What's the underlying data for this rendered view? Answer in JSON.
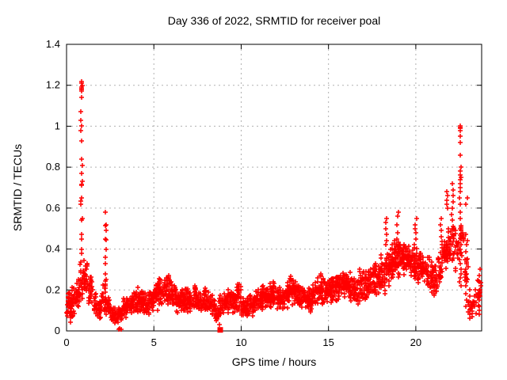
{
  "window": {
    "background": "#ffffff"
  },
  "chart_data": {
    "type": "scatter",
    "title": "Day 336 of 2022, SRMTID for receiver poal",
    "xlabel": "GPS time / hours",
    "ylabel": "SRMTID / TECUs",
    "xlim": [
      0,
      23.77
    ],
    "ylim": [
      0,
      1.4
    ],
    "xtick_values": [
      0,
      5,
      10,
      15,
      20
    ],
    "xtick_labels": [
      "0",
      "5",
      "10",
      "15",
      "20"
    ],
    "ytick_values": [
      0,
      0.2,
      0.4,
      0.6,
      0.8,
      1.0,
      1.2,
      1.4
    ],
    "ytick_labels": [
      "0",
      "0.2",
      "0.4",
      "0.6",
      "0.8",
      "1",
      "1.2",
      "1.4"
    ],
    "grid": true,
    "legend": null,
    "marker": "plus",
    "colors": {
      "points": "#ff0000",
      "grid": "#b0b0b0",
      "axis": "#000000",
      "text": "#000000"
    },
    "seed": 20221336,
    "band_bin_width": 0.25,
    "band_bins": [
      [
        0.125,
        0.03,
        0.22,
        26
      ],
      [
        0.375,
        0.05,
        0.22,
        24
      ],
      [
        0.625,
        0.08,
        0.26,
        24
      ],
      [
        0.875,
        0.14,
        0.34,
        22
      ],
      [
        1.125,
        0.18,
        0.36,
        22
      ],
      [
        1.375,
        0.1,
        0.28,
        22
      ],
      [
        1.625,
        0.06,
        0.2,
        22
      ],
      [
        1.875,
        0.05,
        0.16,
        22
      ],
      [
        2.125,
        0.08,
        0.25,
        20
      ],
      [
        2.375,
        0.06,
        0.18,
        20
      ],
      [
        2.625,
        0.03,
        0.13,
        20
      ],
      [
        2.875,
        0.03,
        0.12,
        20
      ],
      [
        3.125,
        0.03,
        0.13,
        18
      ],
      [
        3.375,
        0.05,
        0.16,
        20
      ],
      [
        3.625,
        0.07,
        0.18,
        22
      ],
      [
        3.875,
        0.08,
        0.2,
        22
      ],
      [
        4.125,
        0.08,
        0.22,
        24
      ],
      [
        4.375,
        0.08,
        0.2,
        24
      ],
      [
        4.625,
        0.07,
        0.19,
        22
      ],
      [
        4.875,
        0.08,
        0.2,
        22
      ],
      [
        5.125,
        0.1,
        0.26,
        24
      ],
      [
        5.375,
        0.1,
        0.28,
        24
      ],
      [
        5.625,
        0.12,
        0.27,
        24
      ],
      [
        5.875,
        0.12,
        0.28,
        24
      ],
      [
        6.125,
        0.1,
        0.24,
        24
      ],
      [
        6.375,
        0.08,
        0.2,
        24
      ],
      [
        6.625,
        0.08,
        0.2,
        24
      ],
      [
        6.875,
        0.09,
        0.23,
        24
      ],
      [
        7.125,
        0.09,
        0.22,
        24
      ],
      [
        7.375,
        0.1,
        0.22,
        24
      ],
      [
        7.625,
        0.08,
        0.2,
        24
      ],
      [
        7.875,
        0.08,
        0.21,
        24
      ],
      [
        8.125,
        0.07,
        0.2,
        22
      ],
      [
        8.375,
        0.06,
        0.18,
        22
      ],
      [
        8.625,
        0.03,
        0.12,
        18
      ],
      [
        8.875,
        0.06,
        0.18,
        20
      ],
      [
        9.125,
        0.08,
        0.2,
        24
      ],
      [
        9.375,
        0.09,
        0.22,
        24
      ],
      [
        9.625,
        0.08,
        0.2,
        24
      ],
      [
        9.875,
        0.08,
        0.24,
        24
      ],
      [
        10.125,
        0.05,
        0.16,
        22
      ],
      [
        10.375,
        0.06,
        0.17,
        22
      ],
      [
        10.625,
        0.07,
        0.18,
        24
      ],
      [
        10.875,
        0.08,
        0.2,
        24
      ],
      [
        11.125,
        0.09,
        0.22,
        24
      ],
      [
        11.375,
        0.1,
        0.24,
        24
      ],
      [
        11.625,
        0.1,
        0.26,
        24
      ],
      [
        11.875,
        0.1,
        0.24,
        24
      ],
      [
        12.125,
        0.1,
        0.22,
        24
      ],
      [
        12.375,
        0.09,
        0.21,
        24
      ],
      [
        12.625,
        0.1,
        0.24,
        24
      ],
      [
        12.875,
        0.12,
        0.28,
        24
      ],
      [
        13.125,
        0.11,
        0.26,
        24
      ],
      [
        13.375,
        0.1,
        0.22,
        24
      ],
      [
        13.625,
        0.1,
        0.22,
        24
      ],
      [
        13.875,
        0.09,
        0.21,
        24
      ],
      [
        14.125,
        0.1,
        0.23,
        24
      ],
      [
        14.375,
        0.12,
        0.27,
        24
      ],
      [
        14.625,
        0.12,
        0.28,
        24
      ],
      [
        14.875,
        0.13,
        0.27,
        24
      ],
      [
        15.125,
        0.13,
        0.28,
        24
      ],
      [
        15.375,
        0.14,
        0.29,
        24
      ],
      [
        15.625,
        0.14,
        0.3,
        24
      ],
      [
        15.875,
        0.15,
        0.32,
        24
      ],
      [
        16.125,
        0.14,
        0.3,
        24
      ],
      [
        16.375,
        0.13,
        0.28,
        24
      ],
      [
        16.625,
        0.13,
        0.28,
        24
      ],
      [
        16.875,
        0.14,
        0.3,
        24
      ],
      [
        17.125,
        0.14,
        0.3,
        24
      ],
      [
        17.375,
        0.15,
        0.32,
        24
      ],
      [
        17.625,
        0.15,
        0.33,
        24
      ],
      [
        17.875,
        0.16,
        0.35,
        24
      ],
      [
        18.125,
        0.18,
        0.38,
        24
      ],
      [
        18.375,
        0.2,
        0.42,
        24
      ],
      [
        18.625,
        0.22,
        0.44,
        26
      ],
      [
        18.875,
        0.24,
        0.44,
        26
      ],
      [
        19.125,
        0.25,
        0.45,
        26
      ],
      [
        19.375,
        0.26,
        0.44,
        26
      ],
      [
        19.625,
        0.25,
        0.43,
        26
      ],
      [
        19.875,
        0.24,
        0.42,
        26
      ],
      [
        20.125,
        0.22,
        0.42,
        24
      ],
      [
        20.375,
        0.22,
        0.4,
        24
      ],
      [
        20.625,
        0.2,
        0.38,
        24
      ],
      [
        20.875,
        0.18,
        0.36,
        24
      ],
      [
        21.125,
        0.15,
        0.34,
        22
      ],
      [
        21.375,
        0.22,
        0.42,
        22
      ],
      [
        21.625,
        0.28,
        0.48,
        22
      ],
      [
        21.875,
        0.3,
        0.52,
        20
      ],
      [
        22.125,
        0.32,
        0.58,
        18
      ],
      [
        22.375,
        0.25,
        0.55,
        14
      ],
      [
        22.625,
        0.3,
        0.6,
        10
      ],
      [
        22.875,
        0.2,
        0.4,
        10
      ],
      [
        23.125,
        0.05,
        0.2,
        10
      ],
      [
        23.375,
        0.08,
        0.22,
        10
      ],
      [
        23.625,
        0.08,
        0.28,
        12
      ]
    ],
    "spike_columns": [
      {
        "x": 0.86,
        "ys": [
          1.22,
          1.21,
          1.2,
          1.19,
          1.185,
          1.18,
          1.17,
          1.14,
          1.07,
          1.03,
          1.0,
          0.98,
          0.93,
          0.84,
          0.81,
          0.77,
          0.73,
          0.715,
          0.71,
          0.65,
          0.635,
          0.62,
          0.55,
          0.54,
          0.47,
          0.45,
          0.4,
          0.38
        ]
      },
      {
        "x": 2.25,
        "ys": [
          0.58,
          0.52,
          0.515,
          0.49,
          0.45,
          0.445,
          0.4,
          0.36,
          0.33,
          0.28,
          0.25,
          0.22
        ]
      },
      {
        "x": 18.3,
        "ys": [
          0.55,
          0.53,
          0.5,
          0.47,
          0.44,
          0.42
        ]
      },
      {
        "x": 18.95,
        "ys": [
          0.58,
          0.56,
          0.52,
          0.48,
          0.45,
          0.42,
          0.4,
          0.38
        ]
      },
      {
        "x": 20.0,
        "ys": [
          0.55,
          0.52,
          0.5,
          0.48,
          0.45
        ]
      },
      {
        "x": 21.45,
        "ys": [
          0.55,
          0.52,
          0.49,
          0.46
        ]
      },
      {
        "x": 21.8,
        "ys": [
          0.68,
          0.66,
          0.64,
          0.62,
          0.6
        ]
      },
      {
        "x": 22.1,
        "ys": [
          0.72,
          0.69,
          0.66,
          0.63,
          0.6,
          0.57,
          0.54,
          0.5,
          0.46,
          0.42,
          0.38,
          0.35
        ]
      },
      {
        "x": 22.55,
        "ys": [
          1.0,
          0.995,
          0.99,
          0.98,
          0.95,
          0.92,
          0.86,
          0.8,
          0.78,
          0.76,
          0.75,
          0.74,
          0.72,
          0.7,
          0.68,
          0.65,
          0.62,
          0.58,
          0.55,
          0.5,
          0.45,
          0.42,
          0.4,
          0.38,
          0.35,
          0.33,
          0.3,
          0.28,
          0.26,
          0.24,
          0.22
        ]
      },
      {
        "x": 22.9,
        "ys": [
          0.65,
          0.62,
          0.47,
          0.44,
          0.42,
          0.35,
          0.33,
          0.3,
          0.28,
          0.25,
          0.22,
          0.18,
          0.15,
          0.12
        ]
      },
      {
        "x": 23.1,
        "ys": [
          0.2,
          0.17,
          0.14,
          0.11,
          0.08,
          0.06
        ]
      },
      {
        "x": 23.65,
        "ys": [
          0.3,
          0.27,
          0.24,
          0.2,
          0.17,
          0.15,
          0.12,
          0.1,
          0.08
        ]
      }
    ],
    "special_markers": [
      {
        "x": 8.8,
        "y": 0.005,
        "marker": "filled-square"
      },
      {
        "x": 3.0,
        "y": 0.008,
        "marker": "plus"
      },
      {
        "x": 3.06,
        "y": 0.012,
        "marker": "plus"
      },
      {
        "x": 3.13,
        "y": 0.006,
        "marker": "plus"
      }
    ]
  }
}
